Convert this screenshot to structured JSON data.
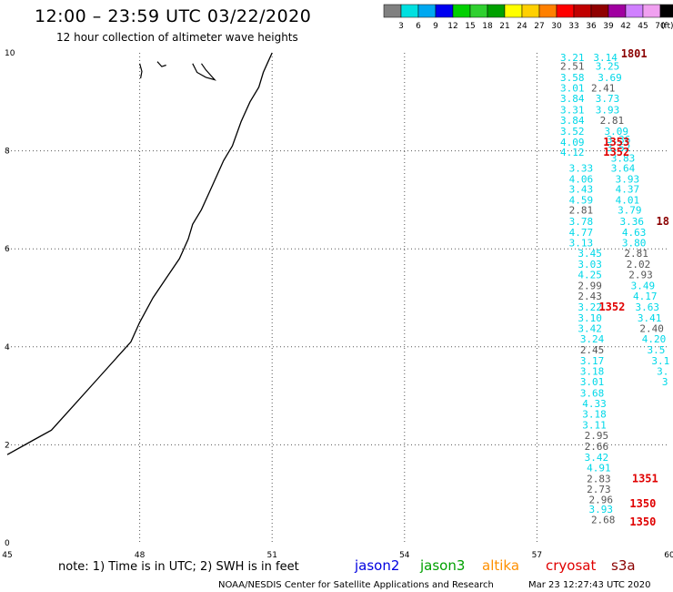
{
  "header": {
    "title": "12:00 – 23:59 UTC 03/22/2020",
    "subtitle": "12 hour collection of altimeter wave heights"
  },
  "colorbar": {
    "colors": [
      "#808080",
      "#00e0e0",
      "#00a8f0",
      "#0000f0",
      "#00d000",
      "#30d030",
      "#00a000",
      "#ffff00",
      "#ffd000",
      "#ff8000",
      "#ff0000",
      "#c00000",
      "#900000",
      "#a000a0",
      "#d080ff",
      "#f0a0f0",
      "#000000"
    ],
    "labels": [
      "3",
      "6",
      "9",
      "12",
      "15",
      "18",
      "21",
      "24",
      "27",
      "30",
      "33",
      "36",
      "39",
      "42",
      "45",
      "70"
    ],
    "unit": "(ft)"
  },
  "colors": {
    "grid": "#555555",
    "coast": "#000000",
    "gray": "#555555",
    "cyan": "#00d8e8",
    "track_dark": "#8b0000",
    "track_red": "#e00000"
  },
  "satellites": [
    {
      "name": "jason2",
      "color": "#0000e0"
    },
    {
      "name": "jason3",
      "color": "#00a000"
    },
    {
      "name": "altika",
      "color": "#ff9000"
    },
    {
      "name": "cryosat",
      "color": "#e00000"
    },
    {
      "name": "s3a",
      "color": "#8b0000"
    }
  ],
  "footer": {
    "note": "note: 1) Time is in UTC; 2) SWH is in feet",
    "credit": "NOAA/NESDIS Center for Satellite Applications and Research",
    "timestamp": "Mar 23 12:27:43 UTC 2020"
  },
  "chart_data": {
    "type": "scatter",
    "title": "12:00 – 23:59 UTC 03/22/2020",
    "subtitle": "12 hour collection of altimeter wave heights",
    "xlim": [
      45,
      60
    ],
    "ylim": [
      0,
      10
    ],
    "x_ticks": [
      "45",
      "48",
      "51",
      "54",
      "57",
      "60"
    ],
    "y_ticks": [
      "0",
      "2",
      "4",
      "6",
      "8",
      "10"
    ],
    "grid": true,
    "coastline": [
      [
        45,
        1.8
      ],
      [
        45.6,
        2.1
      ],
      [
        46,
        2.3
      ],
      [
        46.5,
        2.8
      ],
      [
        47,
        3.3
      ],
      [
        47.5,
        3.8
      ],
      [
        47.8,
        4.1
      ],
      [
        48,
        4.5
      ],
      [
        48.3,
        5.0
      ],
      [
        48.6,
        5.4
      ],
      [
        48.9,
        5.8
      ],
      [
        49.1,
        6.2
      ],
      [
        49.2,
        6.5
      ],
      [
        49.4,
        6.8
      ],
      [
        49.6,
        7.2
      ],
      [
        49.8,
        7.6
      ],
      [
        49.9,
        7.8
      ],
      [
        50.1,
        8.1
      ],
      [
        50.3,
        8.6
      ],
      [
        50.5,
        9.0
      ],
      [
        50.7,
        9.3
      ],
      [
        50.8,
        9.6
      ],
      [
        50.9,
        9.8
      ],
      [
        51,
        10
      ]
    ],
    "islands": [
      [
        [
          48.0,
          9.78
        ],
        [
          48.05,
          9.62
        ],
        [
          48.02,
          9.48
        ]
      ],
      [
        [
          48.4,
          9.82
        ],
        [
          48.5,
          9.72
        ],
        [
          48.6,
          9.75
        ]
      ],
      [
        [
          49.2,
          9.78
        ],
        [
          49.3,
          9.6
        ],
        [
          49.5,
          9.5
        ],
        [
          49.7,
          9.45
        ],
        [
          49.5,
          9.65
        ],
        [
          49.4,
          9.78
        ]
      ]
    ],
    "series": [
      {
        "name": "cryosat",
        "points": [
          {
            "x": 57.8,
            "y": 9.91,
            "v": "3.21",
            "c": "cyan"
          },
          {
            "x": 57.8,
            "y": 9.73,
            "v": "2.51",
            "c": "gray"
          },
          {
            "x": 57.8,
            "y": 9.5,
            "v": "3.58",
            "c": "cyan"
          },
          {
            "x": 57.8,
            "y": 9.28,
            "v": "3.01",
            "c": "cyan"
          },
          {
            "x": 57.8,
            "y": 9.07,
            "v": "3.84",
            "c": "cyan"
          },
          {
            "x": 57.8,
            "y": 8.84,
            "v": "3.31",
            "c": "cyan"
          },
          {
            "x": 57.8,
            "y": 8.62,
            "v": "3.84",
            "c": "cyan"
          },
          {
            "x": 57.8,
            "y": 8.4,
            "v": "3.52",
            "c": "cyan"
          },
          {
            "x": 57.8,
            "y": 8.18,
            "v": "4.09",
            "c": "cyan"
          },
          {
            "x": 57.8,
            "y": 7.97,
            "v": "4.12",
            "c": "cyan"
          },
          {
            "x": 58.0,
            "y": 7.65,
            "v": "3.33",
            "c": "cyan"
          },
          {
            "x": 58.0,
            "y": 7.43,
            "v": "4.06",
            "c": "cyan"
          },
          {
            "x": 58.0,
            "y": 7.22,
            "v": "3.43",
            "c": "cyan"
          },
          {
            "x": 58.0,
            "y": 7.0,
            "v": "4.59",
            "c": "cyan"
          },
          {
            "x": 58.0,
            "y": 6.79,
            "v": "2.81",
            "c": "gray"
          },
          {
            "x": 58.0,
            "y": 6.56,
            "v": "3.78",
            "c": "cyan"
          },
          {
            "x": 58.0,
            "y": 6.34,
            "v": "4.77",
            "c": "cyan"
          },
          {
            "x": 58.0,
            "y": 6.12,
            "v": "3.13",
            "c": "cyan"
          },
          {
            "x": 58.2,
            "y": 5.91,
            "v": "3.45",
            "c": "cyan"
          },
          {
            "x": 58.2,
            "y": 5.69,
            "v": "3.03",
            "c": "cyan"
          },
          {
            "x": 58.2,
            "y": 5.47,
            "v": "4.25",
            "c": "cyan"
          },
          {
            "x": 58.2,
            "y": 5.25,
            "v": "2.99",
            "c": "gray"
          },
          {
            "x": 58.2,
            "y": 5.04,
            "v": "2.43",
            "c": "gray"
          },
          {
            "x": 58.2,
            "y": 4.81,
            "v": "3.22",
            "c": "cyan"
          },
          {
            "x": 58.2,
            "y": 4.59,
            "v": "3.10",
            "c": "cyan"
          },
          {
            "x": 58.2,
            "y": 4.38,
            "v": "3.42",
            "c": "cyan"
          },
          {
            "x": 58.25,
            "y": 4.16,
            "v": "3.24",
            "c": "cyan"
          },
          {
            "x": 58.25,
            "y": 3.94,
            "v": "2.45",
            "c": "gray"
          },
          {
            "x": 58.25,
            "y": 3.72,
            "v": "3.17",
            "c": "cyan"
          },
          {
            "x": 58.25,
            "y": 3.5,
            "v": "3.18",
            "c": "cyan"
          },
          {
            "x": 58.25,
            "y": 3.29,
            "v": "3.01",
            "c": "cyan"
          },
          {
            "x": 58.25,
            "y": 3.06,
            "v": "3.68",
            "c": "cyan"
          },
          {
            "x": 58.3,
            "y": 2.84,
            "v": "4.33",
            "c": "cyan"
          },
          {
            "x": 58.3,
            "y": 2.63,
            "v": "3.18",
            "c": "cyan"
          },
          {
            "x": 58.3,
            "y": 2.41,
            "v": "3.11",
            "c": "cyan"
          },
          {
            "x": 58.35,
            "y": 2.19,
            "v": "2.95",
            "c": "gray"
          },
          {
            "x": 58.35,
            "y": 1.97,
            "v": "2.66",
            "c": "gray"
          },
          {
            "x": 58.35,
            "y": 1.75,
            "v": "3.42",
            "c": "cyan"
          },
          {
            "x": 58.4,
            "y": 1.53,
            "v": "4.91",
            "c": "cyan"
          },
          {
            "x": 58.4,
            "y": 1.31,
            "v": "2.83",
            "c": "gray"
          },
          {
            "x": 58.4,
            "y": 1.1,
            "v": "2.73",
            "c": "gray"
          },
          {
            "x": 58.45,
            "y": 0.88,
            "v": "2.96",
            "c": "gray"
          },
          {
            "x": 58.45,
            "y": 0.69,
            "v": "3.93",
            "c": "cyan"
          },
          {
            "x": 58.5,
            "y": 0.47,
            "v": "2.68",
            "c": "gray"
          }
        ]
      },
      {
        "name": "s3a",
        "points": [
          {
            "x": 58.55,
            "y": 9.91,
            "v": "3.14",
            "c": "cyan"
          },
          {
            "x": 58.6,
            "y": 9.73,
            "v": "3.25",
            "c": "cyan"
          },
          {
            "x": 58.65,
            "y": 9.5,
            "v": "3.69",
            "c": "cyan"
          },
          {
            "x": 58.5,
            "y": 9.28,
            "v": "2.41",
            "c": "gray"
          },
          {
            "x": 58.6,
            "y": 9.07,
            "v": "3.73",
            "c": "cyan"
          },
          {
            "x": 58.6,
            "y": 8.84,
            "v": "3.93",
            "c": "cyan"
          },
          {
            "x": 58.7,
            "y": 8.62,
            "v": "2.81",
            "c": "gray"
          },
          {
            "x": 58.8,
            "y": 8.4,
            "v": "3.09",
            "c": "cyan"
          },
          {
            "x": 58.85,
            "y": 8.23,
            "v": "3.36",
            "c": "cyan"
          },
          {
            "x": 58.85,
            "y": 8.07,
            "v": "3.52",
            "c": "cyan"
          },
          {
            "x": 58.95,
            "y": 7.85,
            "v": "3.83",
            "c": "cyan"
          },
          {
            "x": 58.95,
            "y": 7.65,
            "v": "3.64",
            "c": "cyan"
          },
          {
            "x": 59.05,
            "y": 7.43,
            "v": "3.93",
            "c": "cyan"
          },
          {
            "x": 59.05,
            "y": 7.22,
            "v": "4.37",
            "c": "cyan"
          },
          {
            "x": 59.05,
            "y": 7.0,
            "v": "4.01",
            "c": "cyan"
          },
          {
            "x": 59.1,
            "y": 6.79,
            "v": "3.79",
            "c": "cyan"
          },
          {
            "x": 59.15,
            "y": 6.56,
            "v": "3.36",
            "c": "cyan"
          },
          {
            "x": 59.2,
            "y": 6.34,
            "v": "4.63",
            "c": "cyan"
          },
          {
            "x": 59.2,
            "y": 6.12,
            "v": "3.80",
            "c": "cyan"
          },
          {
            "x": 59.25,
            "y": 5.91,
            "v": "2.81",
            "c": "gray"
          },
          {
            "x": 59.3,
            "y": 5.69,
            "v": "2.02",
            "c": "gray"
          },
          {
            "x": 59.35,
            "y": 5.47,
            "v": "2.93",
            "c": "gray"
          },
          {
            "x": 59.4,
            "y": 5.25,
            "v": "3.49",
            "c": "cyan"
          },
          {
            "x": 59.45,
            "y": 5.04,
            "v": "4.17",
            "c": "cyan"
          },
          {
            "x": 59.5,
            "y": 4.81,
            "v": "3.63",
            "c": "cyan"
          },
          {
            "x": 59.55,
            "y": 4.59,
            "v": "3.41",
            "c": "cyan"
          },
          {
            "x": 59.6,
            "y": 4.38,
            "v": "2.40",
            "c": "gray"
          },
          {
            "x": 59.65,
            "y": 4.16,
            "v": "4.20",
            "c": "cyan"
          },
          {
            "x": 59.7,
            "y": 3.94,
            "v": "3.5",
            "c": "cyan"
          },
          {
            "x": 59.8,
            "y": 3.72,
            "v": "3.1",
            "c": "cyan"
          },
          {
            "x": 59.85,
            "y": 3.5,
            "v": "3.",
            "c": "cyan"
          },
          {
            "x": 59.9,
            "y": 3.29,
            "v": "3",
            "c": "cyan"
          }
        ]
      }
    ],
    "track_labels": [
      {
        "x": 59.2,
        "y": 9.98,
        "text": "1801",
        "c": "track_dark"
      },
      {
        "x": 58.8,
        "y": 8.18,
        "text": "1353",
        "c": "track_red"
      },
      {
        "x": 58.8,
        "y": 7.97,
        "text": "1352",
        "c": "track_red"
      },
      {
        "x": 59.85,
        "y": 6.56,
        "text": "18",
        "c": "track_dark"
      },
      {
        "x": 58.7,
        "y": 4.81,
        "text": "1352",
        "c": "track_red"
      },
      {
        "x": 59.45,
        "y": 1.31,
        "text": "1351",
        "c": "track_red"
      },
      {
        "x": 59.4,
        "y": 0.8,
        "text": "1350",
        "c": "track_red"
      },
      {
        "x": 59.4,
        "y": 0.43,
        "text": "1350",
        "c": "track_red"
      }
    ]
  }
}
